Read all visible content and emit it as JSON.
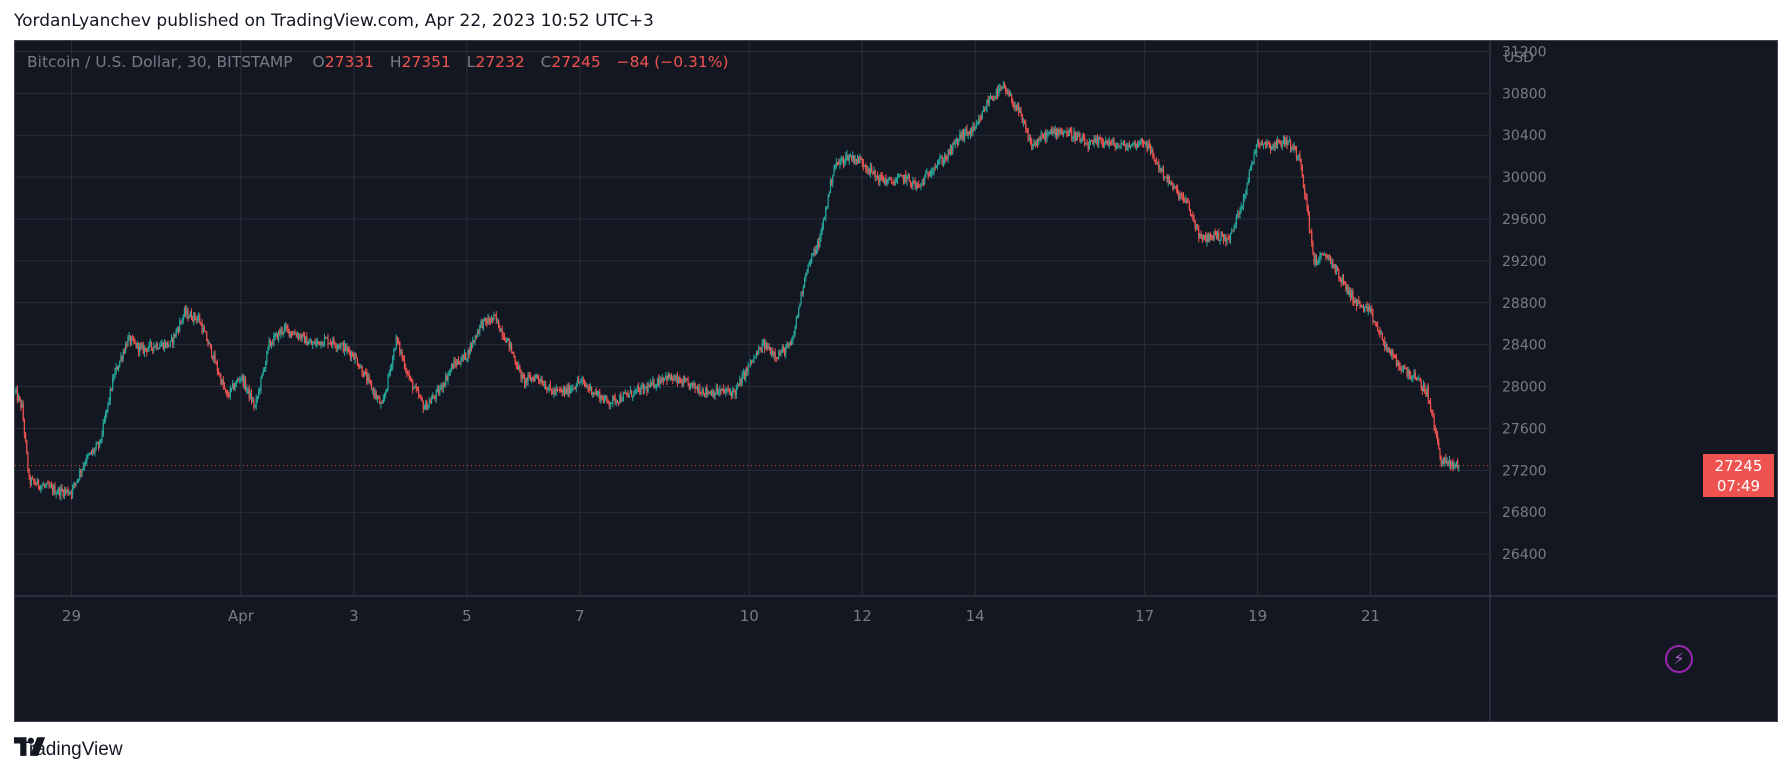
{
  "publisher_line": "YordanLyanchev published on TradingView.com, Apr 22, 2023 10:52 UTC+3",
  "legend": {
    "symbol": "Bitcoin / U.S. Dollar, 30, BITSTAMP",
    "o_label": "O",
    "o_value": "27331",
    "h_label": "H",
    "h_value": "27351",
    "l_label": "L",
    "l_value": "27232",
    "c_label": "C",
    "c_value": "27245",
    "change": "−84 (−0.31%)"
  },
  "last_price": {
    "price": "27245",
    "countdown": "07:49"
  },
  "brand": {
    "name": "TradingView"
  },
  "icons": {
    "bolt": "lightning-bolt-icon",
    "logo": "tradingview-logo-icon"
  },
  "colors": {
    "background": "#131722",
    "up": "#26a69a",
    "down": "#ef5350",
    "grid": "#434651",
    "text": "#787b86"
  },
  "chart_data": {
    "type": "candlestick",
    "symbol": "Bitcoin / U.S. Dollar",
    "interval": "30",
    "exchange": "BITSTAMP",
    "currency": "USD",
    "ylim": [
      26000,
      31300
    ],
    "y_ticks": [
      26400,
      26800,
      27200,
      27600,
      28000,
      28400,
      28800,
      29200,
      29600,
      30000,
      30400,
      30800,
      31200
    ],
    "y_tick_labels": [
      "26400",
      "26800",
      "27200",
      "27600",
      "28000",
      "28400",
      "28800",
      "29200",
      "29600",
      "30000",
      "30400",
      "30800",
      "31200"
    ],
    "x_range": [
      "2023-03-28",
      "2023-04-22T14:00"
    ],
    "x_ticks": [
      {
        "date": "2023-03-29",
        "label": "29"
      },
      {
        "date": "2023-04-01",
        "label": "Apr"
      },
      {
        "date": "2023-04-03",
        "label": "3"
      },
      {
        "date": "2023-04-05",
        "label": "5"
      },
      {
        "date": "2023-04-07",
        "label": "7"
      },
      {
        "date": "2023-04-10",
        "label": "10"
      },
      {
        "date": "2023-04-12",
        "label": "12"
      },
      {
        "date": "2023-04-14",
        "label": "14"
      },
      {
        "date": "2023-04-17",
        "label": "17"
      },
      {
        "date": "2023-04-19",
        "label": "19"
      },
      {
        "date": "2023-04-21",
        "label": "21"
      }
    ],
    "grid": true,
    "last_close": 27245,
    "price_path": [
      [
        "2023-03-28T00:00",
        27950
      ],
      [
        "2023-03-28T03:00",
        27800
      ],
      [
        "2023-03-28T06:00",
        27100
      ],
      [
        "2023-03-28T12:00",
        27050
      ],
      [
        "2023-03-28T18:00",
        27000
      ],
      [
        "2023-03-29T00:00",
        27000
      ],
      [
        "2023-03-29T06:00",
        27300
      ],
      [
        "2023-03-29T12:00",
        27450
      ],
      [
        "2023-03-29T18:00",
        28100
      ],
      [
        "2023-03-30T00:00",
        28450
      ],
      [
        "2023-03-30T06:00",
        28350
      ],
      [
        "2023-03-30T12:00",
        28400
      ],
      [
        "2023-03-30T18:00",
        28400
      ],
      [
        "2023-03-31T00:00",
        28700
      ],
      [
        "2023-03-31T06:00",
        28650
      ],
      [
        "2023-03-31T12:00",
        28300
      ],
      [
        "2023-03-31T18:00",
        27900
      ],
      [
        "2023-04-01T00:00",
        28100
      ],
      [
        "2023-04-01T06:00",
        27800
      ],
      [
        "2023-04-01T12:00",
        28400
      ],
      [
        "2023-04-01T18:00",
        28550
      ],
      [
        "2023-04-02T00:00",
        28500
      ],
      [
        "2023-04-02T06:00",
        28400
      ],
      [
        "2023-04-02T12:00",
        28450
      ],
      [
        "2023-04-02T18:00",
        28400
      ],
      [
        "2023-04-03T00:00",
        28300
      ],
      [
        "2023-04-03T06:00",
        28050
      ],
      [
        "2023-04-03T12:00",
        27800
      ],
      [
        "2023-04-03T18:00",
        28450
      ],
      [
        "2023-04-04T00:00",
        28050
      ],
      [
        "2023-04-04T06:00",
        27800
      ],
      [
        "2023-04-04T12:00",
        27950
      ],
      [
        "2023-04-04T18:00",
        28200
      ],
      [
        "2023-04-05T00:00",
        28300
      ],
      [
        "2023-04-05T06:00",
        28600
      ],
      [
        "2023-04-05T12:00",
        28650
      ],
      [
        "2023-04-05T18:00",
        28400
      ],
      [
        "2023-04-06T00:00",
        28050
      ],
      [
        "2023-04-06T06:00",
        28100
      ],
      [
        "2023-04-06T12:00",
        27950
      ],
      [
        "2023-04-06T18:00",
        27950
      ],
      [
        "2023-04-07T00:00",
        28050
      ],
      [
        "2023-04-07T06:00",
        27950
      ],
      [
        "2023-04-07T12:00",
        27850
      ],
      [
        "2023-04-07T18:00",
        27900
      ],
      [
        "2023-04-08T00:00",
        27950
      ],
      [
        "2023-04-08T06:00",
        28000
      ],
      [
        "2023-04-08T12:00",
        28100
      ],
      [
        "2023-04-08T18:00",
        28050
      ],
      [
        "2023-04-09T00:00",
        28000
      ],
      [
        "2023-04-09T06:00",
        27950
      ],
      [
        "2023-04-09T12:00",
        27950
      ],
      [
        "2023-04-09T18:00",
        27950
      ],
      [
        "2023-04-10T00:00",
        28200
      ],
      [
        "2023-04-10T06:00",
        28400
      ],
      [
        "2023-04-10T12:00",
        28300
      ],
      [
        "2023-04-10T18:00",
        28400
      ],
      [
        "2023-04-11T00:00",
        29100
      ],
      [
        "2023-04-11T06:00",
        29400
      ],
      [
        "2023-04-11T12:00",
        30100
      ],
      [
        "2023-04-11T18:00",
        30200
      ],
      [
        "2023-04-12T00:00",
        30150
      ],
      [
        "2023-04-12T06:00",
        30000
      ],
      [
        "2023-04-12T12:00",
        29950
      ],
      [
        "2023-04-12T18:00",
        30000
      ],
      [
        "2023-04-13T00:00",
        29900
      ],
      [
        "2023-04-13T06:00",
        30100
      ],
      [
        "2023-04-13T12:00",
        30200
      ],
      [
        "2023-04-13T18:00",
        30400
      ],
      [
        "2023-04-14T00:00",
        30450
      ],
      [
        "2023-04-14T06:00",
        30750
      ],
      [
        "2023-04-14T12:00",
        30850
      ],
      [
        "2023-04-14T18:00",
        30650
      ],
      [
        "2023-04-15T00:00",
        30300
      ],
      [
        "2023-04-15T06:00",
        30400
      ],
      [
        "2023-04-15T12:00",
        30450
      ],
      [
        "2023-04-15T18:00",
        30400
      ],
      [
        "2023-04-16T00:00",
        30300
      ],
      [
        "2023-04-16T06:00",
        30350
      ],
      [
        "2023-04-16T12:00",
        30300
      ],
      [
        "2023-04-16T18:00",
        30300
      ],
      [
        "2023-04-17T00:00",
        30350
      ],
      [
        "2023-04-17T06:00",
        30100
      ],
      [
        "2023-04-17T12:00",
        29900
      ],
      [
        "2023-04-17T18:00",
        29750
      ],
      [
        "2023-04-18T00:00",
        29400
      ],
      [
        "2023-04-18T06:00",
        29450
      ],
      [
        "2023-04-18T12:00",
        29400
      ],
      [
        "2023-04-18T18:00",
        29800
      ],
      [
        "2023-04-19T00:00",
        30350
      ],
      [
        "2023-04-19T06:00",
        30300
      ],
      [
        "2023-04-19T12:00",
        30350
      ],
      [
        "2023-04-19T18:00",
        30200
      ],
      [
        "2023-04-20T00:00",
        29200
      ],
      [
        "2023-04-20T06:00",
        29250
      ],
      [
        "2023-04-20T12:00",
        29000
      ],
      [
        "2023-04-20T18:00",
        28800
      ],
      [
        "2023-04-21T00:00",
        28700
      ],
      [
        "2023-04-21T06:00",
        28400
      ],
      [
        "2023-04-21T12:00",
        28200
      ],
      [
        "2023-04-21T18:00",
        28100
      ],
      [
        "2023-04-22T00:00",
        27950
      ],
      [
        "2023-04-22T06:00",
        27300
      ],
      [
        "2023-04-22T10:00",
        27250
      ],
      [
        "2023-04-22T14:00",
        27245
      ]
    ]
  }
}
